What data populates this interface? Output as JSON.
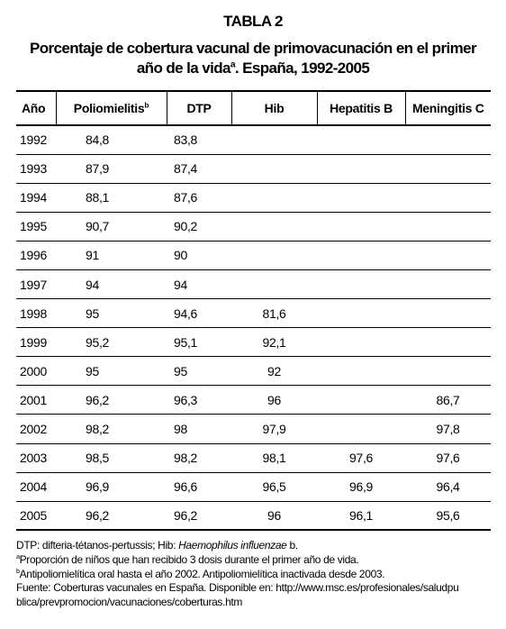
{
  "header": {
    "title": "TABLA 2",
    "subtitle_line1": "Porcentaje de cobertura vacunal de primovacunación en el primer",
    "subtitle_line2": {
      "text": "año de la vida",
      "sup": "a",
      "rest": ". España, 1992-2005"
    }
  },
  "table": {
    "columns": [
      {
        "text": "Año"
      },
      {
        "text": "Poliomielitis",
        "sup": "b"
      },
      {
        "text": "DTP"
      },
      {
        "text": "Hib"
      },
      {
        "text": "Hepatitis B"
      },
      {
        "text": "Meningitis C"
      }
    ],
    "rows": [
      [
        "1992",
        "84,8",
        "83,8",
        null,
        null,
        null
      ],
      [
        "1993",
        "87,9",
        "87,4",
        null,
        null,
        null
      ],
      [
        "1994",
        "88,1",
        "87,6",
        null,
        null,
        null
      ],
      [
        "1995",
        "90,7",
        "90,2",
        null,
        null,
        null
      ],
      [
        "1996",
        "91",
        "90",
        null,
        null,
        null
      ],
      [
        "1997",
        "94",
        "94",
        null,
        null,
        null
      ],
      [
        "1998",
        "95",
        "94,6",
        "81,6",
        null,
        null
      ],
      [
        "1999",
        "95,2",
        "95,1",
        "92,1",
        null,
        null
      ],
      [
        "2000",
        "95",
        "95",
        "92",
        null,
        null
      ],
      [
        "2001",
        "96,2",
        "96,3",
        "96",
        null,
        "86,7"
      ],
      [
        "2002",
        "98,2",
        "98",
        "97,9",
        null,
        "97,8"
      ],
      [
        "2003",
        "98,5",
        "98,2",
        "98,1",
        "97,6",
        "97,6"
      ],
      [
        "2004",
        "96,9",
        "96,6",
        "96,5",
        "96,9",
        "96,4"
      ],
      [
        "2005",
        "96,2",
        "96,2",
        "96",
        "96,1",
        "95,6"
      ]
    ]
  },
  "footnotes": {
    "abbreviations": {
      "text": "DTP: difteria-tétanos-pertussis; Hib: ",
      "italic": "Haemophilus influenzae",
      "rest": " b."
    },
    "note_a": {
      "sup": "a",
      "text": "Proporción de niños que han recibido 3 dosis durante el primer año de vida."
    },
    "note_b": {
      "sup": "b",
      "text": "Antipoliomielítica oral hasta el año 2002. Antipoliomielítica inactivada desde 2003."
    },
    "source_line1": "Fuente: Coberturas vacunales en España. Disponible en: http://www.msc.es/profesionales/saludpu",
    "source_line2": "blica/prevpromocion/vacunaciones/coberturas.htm"
  }
}
